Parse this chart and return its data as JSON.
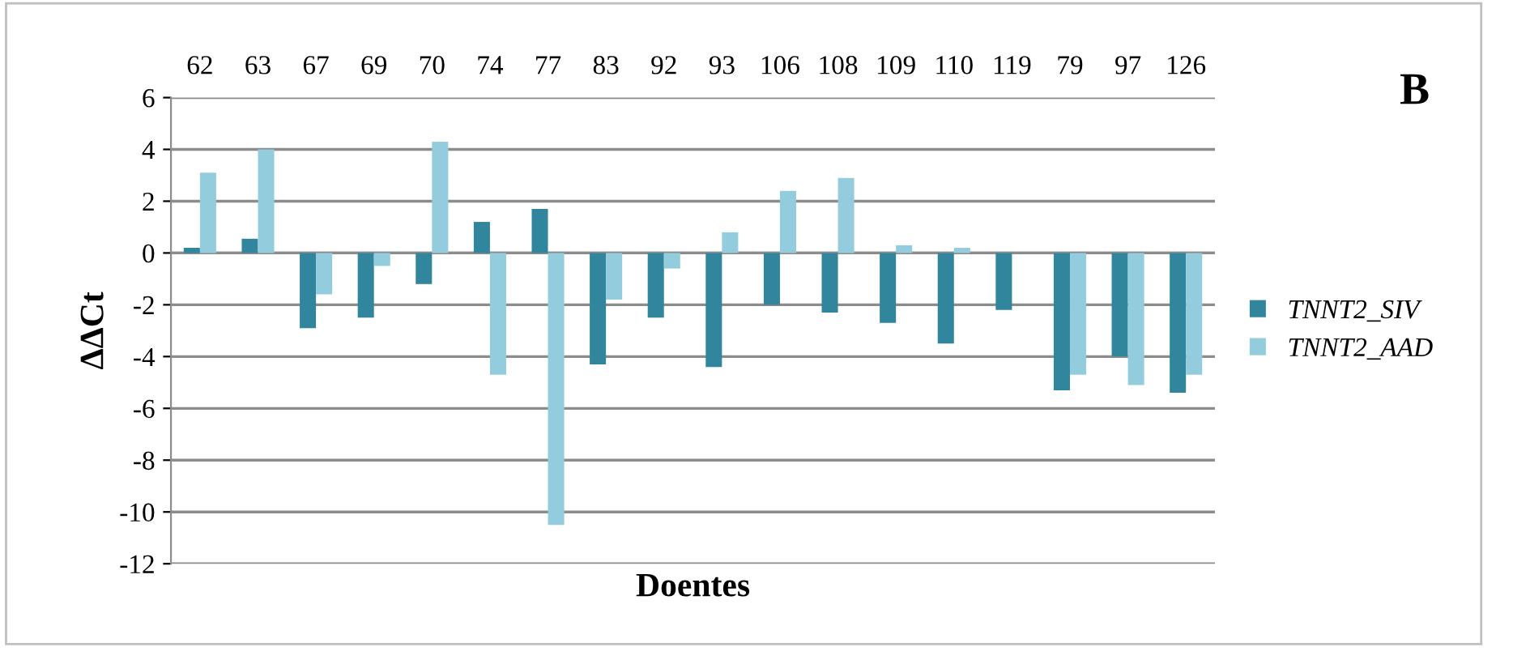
{
  "chart_data": {
    "type": "bar",
    "categories": [
      "62",
      "63",
      "67",
      "69",
      "70",
      "74",
      "77",
      "83",
      "92",
      "93",
      "106",
      "108",
      "109",
      "110",
      "119",
      "79",
      "97",
      "126"
    ],
    "series": [
      {
        "name": "TNNT2_SIV",
        "color": "#31859c",
        "values": [
          0.2,
          0.55,
          -2.9,
          -2.5,
          -1.2,
          1.2,
          1.7,
          -4.3,
          -2.5,
          -4.4,
          -2.0,
          -2.3,
          -2.7,
          -3.5,
          -2.2,
          -5.3,
          -4.0,
          -5.4
        ]
      },
      {
        "name": "TNNT2_AAD",
        "color": "#93cddd",
        "values": [
          3.1,
          4.0,
          -1.6,
          -0.5,
          4.3,
          -4.7,
          -10.5,
          -1.8,
          -0.6,
          0.8,
          2.4,
          2.9,
          0.3,
          0.2,
          0.0,
          -4.7,
          -5.1,
          -4.7
        ]
      }
    ],
    "xlabel": "Doentes",
    "ylabel": "ΔΔCt",
    "annotations": [
      "B"
    ],
    "ylim": [
      -12,
      6
    ],
    "yticks": [
      -12,
      -10,
      -8,
      -6,
      -4,
      -2,
      0,
      2,
      4,
      6
    ],
    "grid": "y",
    "legend": "right"
  }
}
